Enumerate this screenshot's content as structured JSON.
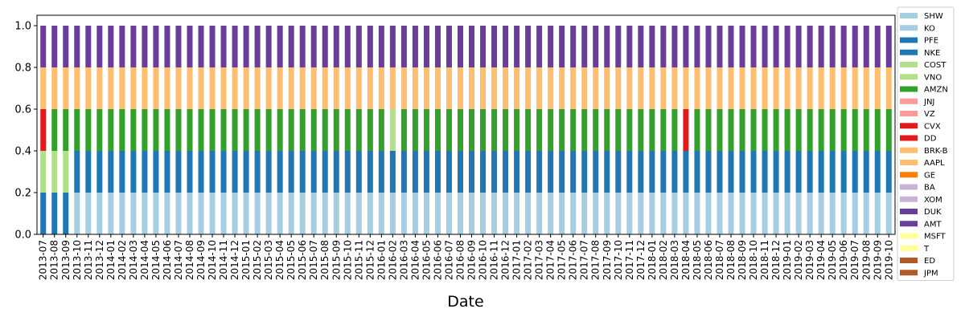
{
  "chart_data": {
    "type": "bar",
    "stacked": true,
    "xlabel": "Date",
    "ylabel": "",
    "ylim": [
      0,
      1.05
    ],
    "yticks": [
      "0.0",
      "0.2",
      "0.4",
      "0.6",
      "0.8",
      "1.0"
    ],
    "legend_position": "outside-right",
    "start_month": "2013-07",
    "end_month": "2019-10",
    "tick_every": 1,
    "default_composition": [
      "SHW",
      "PFE",
      "AMZN",
      "BRK-B",
      "DUK"
    ],
    "exceptions": [
      {
        "date": "2013-07",
        "composition": [
          "PFE",
          "COST",
          "CVX",
          "BRK-B",
          "DUK"
        ]
      },
      {
        "date": "2013-08",
        "composition": [
          "PFE",
          "COST",
          "AMZN",
          "BRK-B",
          "DUK"
        ]
      },
      {
        "date": "2013-09",
        "composition": [
          "PFE",
          "COST",
          "AMZN",
          "BRK-B",
          "DUK"
        ]
      },
      {
        "date": "2016-02",
        "composition": [
          "SHW",
          "PFE",
          "COST",
          "BRK-B",
          "DUK"
        ]
      },
      {
        "date": "2018-04",
        "composition": [
          "SHW",
          "PFE",
          "CVX",
          "BRK-B",
          "DUK"
        ]
      }
    ],
    "segment_value": 0.2,
    "series": [
      {
        "name": "SHW",
        "color": "#a6cee3"
      },
      {
        "name": "KO",
        "color": "#a6cee3"
      },
      {
        "name": "PFE",
        "color": "#1f78b4"
      },
      {
        "name": "NKE",
        "color": "#1f78b4"
      },
      {
        "name": "COST",
        "color": "#b2df8a"
      },
      {
        "name": "VNO",
        "color": "#b2df8a"
      },
      {
        "name": "AMZN",
        "color": "#33a02c"
      },
      {
        "name": "JNJ",
        "color": "#fb9a99"
      },
      {
        "name": "VZ",
        "color": "#fb9a99"
      },
      {
        "name": "CVX",
        "color": "#e31a1c"
      },
      {
        "name": "DD",
        "color": "#e31a1c"
      },
      {
        "name": "BRK-B",
        "color": "#fdbf6f"
      },
      {
        "name": "AAPL",
        "color": "#fdbf6f"
      },
      {
        "name": "GE",
        "color": "#ff7f00"
      },
      {
        "name": "BA",
        "color": "#cab2d6"
      },
      {
        "name": "XOM",
        "color": "#cab2d6"
      },
      {
        "name": "DUK",
        "color": "#6a3d9a"
      },
      {
        "name": "AMT",
        "color": "#6a3d9a"
      },
      {
        "name": "MSFT",
        "color": "#ffff99"
      },
      {
        "name": "T",
        "color": "#ffff99"
      },
      {
        "name": "ED",
        "color": "#b15928"
      },
      {
        "name": "JPM",
        "color": "#b15928"
      }
    ]
  }
}
